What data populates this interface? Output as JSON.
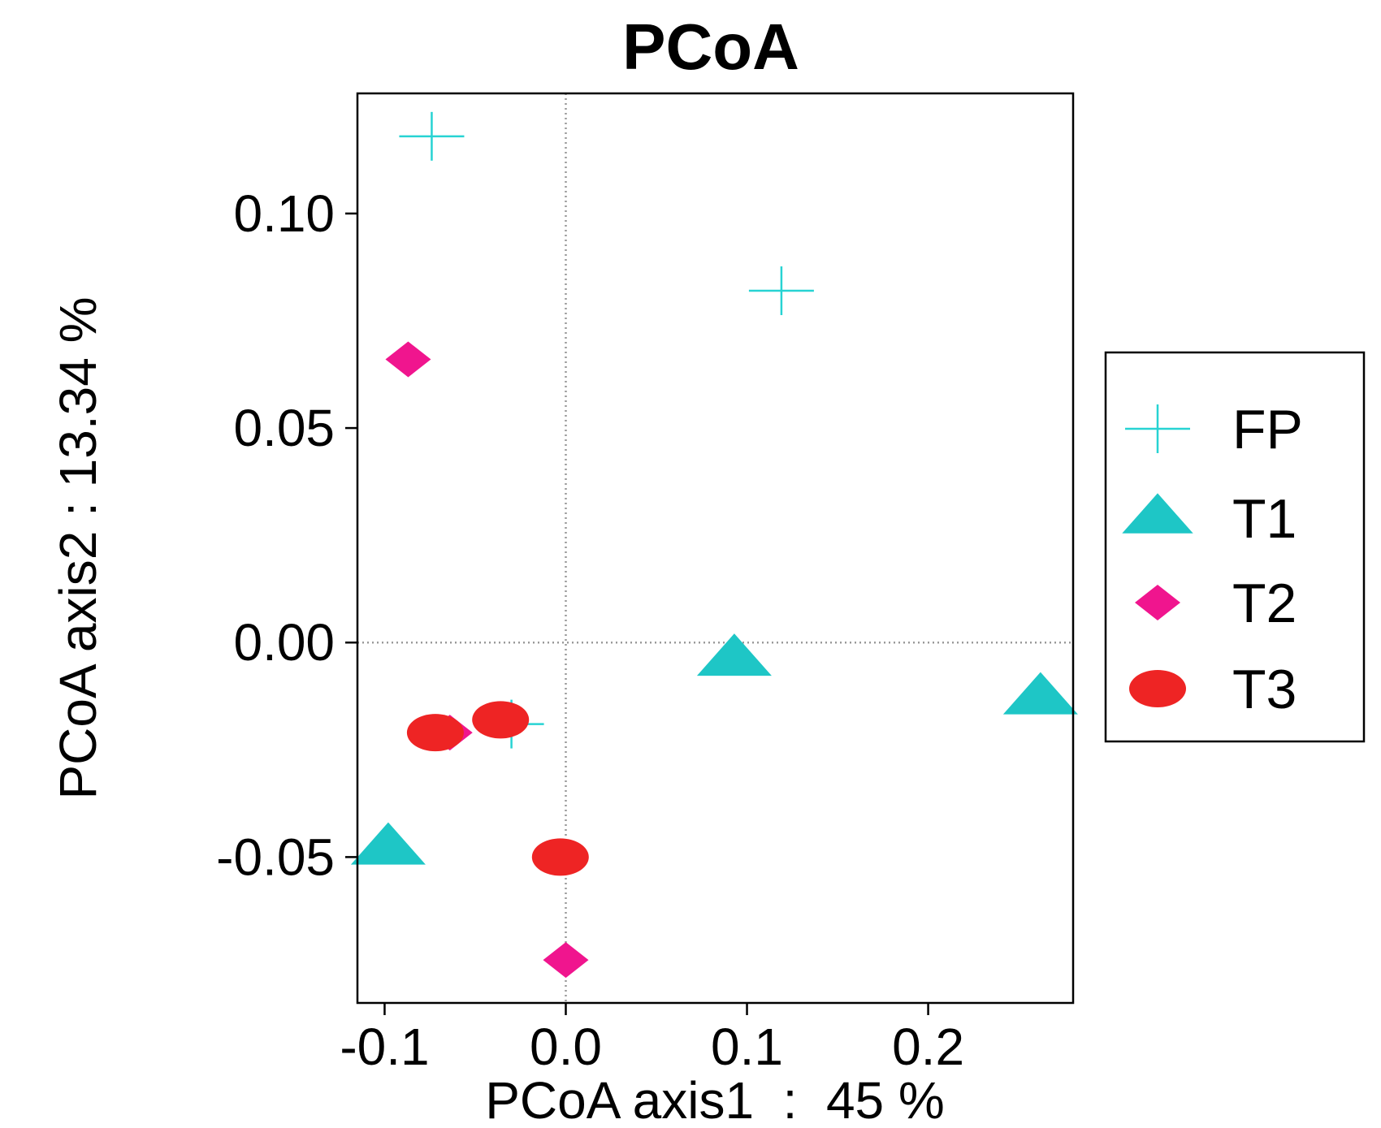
{
  "chart_data": {
    "type": "scatter",
    "title": "PCoA",
    "xlabel": "PCoA axis1  :  45 %",
    "ylabel": "PCoA axis2 : 13.34 %",
    "xlim": [
      -0.115,
      0.28
    ],
    "ylim": [
      -0.084,
      0.128
    ],
    "xticks": [
      {
        "value": -0.1,
        "label": "-0.1"
      },
      {
        "value": 0.0,
        "label": "0.0"
      },
      {
        "value": 0.1,
        "label": "0.1"
      },
      {
        "value": 0.2,
        "label": "0.2"
      }
    ],
    "yticks": [
      {
        "value": -0.05,
        "label": "-0.05"
      },
      {
        "value": 0.0,
        "label": "0.00"
      },
      {
        "value": 0.05,
        "label": "0.05"
      },
      {
        "value": 0.1,
        "label": "0.10"
      }
    ],
    "reference_lines": {
      "x": 0,
      "y": 0,
      "style": "dotted"
    },
    "legend": {
      "position": "right"
    },
    "series": [
      {
        "name": "FP",
        "marker": "plus",
        "color": "#27d3d3",
        "points": [
          [
            -0.074,
            0.118
          ],
          [
            0.119,
            0.082
          ],
          [
            -0.03,
            -0.019
          ]
        ]
      },
      {
        "name": "T1",
        "marker": "triangle",
        "color": "#1ec6c6",
        "points": [
          [
            0.093,
            -0.004
          ],
          [
            0.262,
            -0.013
          ],
          [
            -0.098,
            -0.048
          ]
        ]
      },
      {
        "name": "T2",
        "marker": "diamond",
        "color": "#f0158e",
        "points": [
          [
            -0.087,
            0.066
          ],
          [
            -0.064,
            -0.021
          ],
          [
            0.0,
            -0.074
          ]
        ]
      },
      {
        "name": "T3",
        "marker": "circle",
        "color": "#ee2424",
        "points": [
          [
            -0.072,
            -0.021
          ],
          [
            -0.036,
            -0.018
          ],
          [
            -0.003,
            -0.05
          ]
        ]
      }
    ]
  }
}
